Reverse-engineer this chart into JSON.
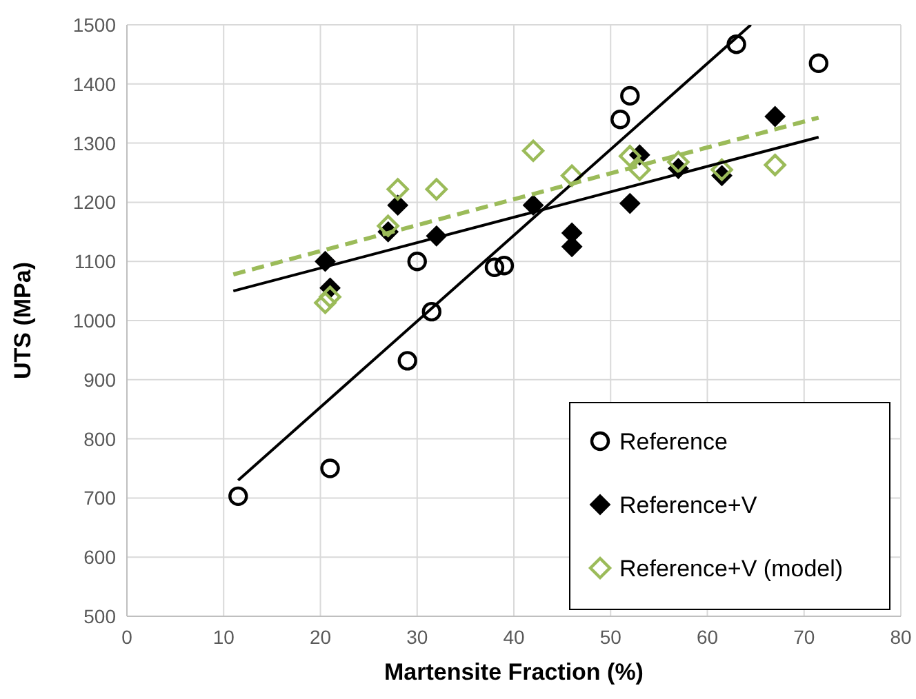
{
  "chart_data": {
    "type": "scatter",
    "xlabel": "Martensite Fraction (%)",
    "ylabel": "UTS (MPa)",
    "xlim": [
      0,
      80
    ],
    "xticks": [
      0,
      10,
      20,
      30,
      40,
      50,
      60,
      70,
      80
    ],
    "ylim": [
      500,
      1500
    ],
    "yticks": [
      500,
      600,
      700,
      800,
      900,
      1000,
      1100,
      1200,
      1300,
      1400,
      1500
    ],
    "grid": true,
    "legend": "bottom right",
    "series": [
      {
        "name": "Reference",
        "color": "#000000",
        "marker": "circle",
        "x": [
          11.5,
          21,
          29,
          30,
          31.5,
          38,
          39,
          51,
          52,
          63,
          71.5
        ],
        "values": [
          703,
          750,
          932,
          1100,
          1015,
          1090,
          1093,
          1340,
          1380,
          1467,
          1435
        ]
      },
      {
        "name": "Reference+V",
        "color": "#000000",
        "marker": "diamond",
        "x": [
          20.5,
          21,
          27,
          28,
          32,
          42,
          46,
          46,
          52,
          53,
          57,
          61.5,
          67
        ],
        "values": [
          1100,
          1055,
          1150,
          1195,
          1143,
          1195,
          1125,
          1148,
          1198,
          1280,
          1257,
          1245,
          1345
        ]
      },
      {
        "name": "Reference+V (model)",
        "color": "#9bbb59",
        "marker": "diamond",
        "x": [
          20.5,
          21,
          27,
          28,
          32,
          42,
          46,
          52,
          53,
          57,
          61.5,
          67
        ],
        "values": [
          1030,
          1040,
          1160,
          1222,
          1222,
          1287,
          1245,
          1278,
          1255,
          1268,
          1255,
          1263
        ]
      },
      {
        "type": "line",
        "color": "#000000",
        "line_style": "solid",
        "x": [
          11.5,
          64.5
        ],
        "values": [
          730,
          1500
        ]
      },
      {
        "type": "line",
        "color": "#000000",
        "line_style": "solid",
        "x": [
          11,
          71.5
        ],
        "values": [
          1050,
          1310
        ]
      },
      {
        "type": "line",
        "color": "#9bbb59",
        "line_style": "dashed",
        "x": [
          11,
          71.5
        ],
        "values": [
          1078,
          1343
        ]
      }
    ]
  }
}
